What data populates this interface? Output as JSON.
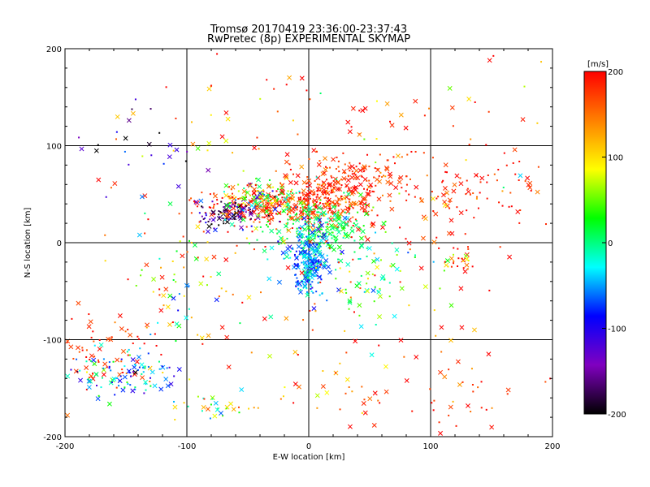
{
  "chart_data": {
    "type": "scatter",
    "title": "Tromsø 20170419 23:36:00-23:37:43",
    "subtitle": "RwPretec (8p) EXPERIMENTAL SKYMAP",
    "xlabel": "E-W location [km]",
    "ylabel": "N-S location [km]",
    "xlim": [
      -200,
      200
    ],
    "ylim": [
      -200,
      200
    ],
    "xticks": [
      "-200",
      "-100",
      "0",
      "100",
      "200"
    ],
    "yticks": [
      "-200",
      "-100",
      "0",
      "100",
      "200"
    ],
    "grid": true,
    "grid_values": [
      -100,
      0,
      100
    ],
    "colorbar": {
      "label": "[m/s]",
      "range": [
        -200,
        200
      ],
      "ticks": [
        "-200",
        "-100",
        "0",
        "100",
        "200"
      ],
      "colormap": [
        "#000000",
        "#8000c0",
        "#0000ff",
        "#00ffff",
        "#00ff00",
        "#ffff00",
        "#ff8000",
        "#ff0000"
      ]
    },
    "marker_types": [
      "dot",
      "x"
    ],
    "clusters": [
      {
        "x": -30,
        "y": 38,
        "sx": 30,
        "sy": 9,
        "n": 260,
        "v": 185,
        "vs": 25
      },
      {
        "x": 15,
        "y": 45,
        "sx": 25,
        "sy": 15,
        "n": 200,
        "v": 175,
        "vs": 30
      },
      {
        "x": 40,
        "y": 65,
        "sx": 25,
        "sy": 12,
        "n": 110,
        "v": 185,
        "vs": 20
      },
      {
        "x": 10,
        "y": 15,
        "sx": 20,
        "sy": 15,
        "n": 200,
        "v": 10,
        "vs": 20
      },
      {
        "x": 0,
        "y": -20,
        "sx": 8,
        "sy": 18,
        "n": 240,
        "v": -60,
        "vs": 30
      },
      {
        "x": -65,
        "y": 30,
        "sx": 15,
        "sy": 10,
        "n": 90,
        "v": -150,
        "vs": 50
      },
      {
        "x": -40,
        "y": 45,
        "sx": 18,
        "sy": 8,
        "n": 110,
        "v": 50,
        "vs": 70
      },
      {
        "x": 130,
        "y": 50,
        "sx": 40,
        "sy": 25,
        "n": 90,
        "v": 185,
        "vs": 20
      },
      {
        "x": -170,
        "y": -110,
        "sx": 25,
        "sy": 20,
        "n": 70,
        "v": 185,
        "vs": 20
      },
      {
        "x": -150,
        "y": -135,
        "sx": 22,
        "sy": 14,
        "n": 110,
        "v": -40,
        "vs": 60
      },
      {
        "x": -105,
        "y": -50,
        "sx": 18,
        "sy": 35,
        "n": 50,
        "v": 60,
        "vs": 80
      },
      {
        "x": -80,
        "y": -170,
        "sx": 20,
        "sy": 8,
        "n": 28,
        "v": 60,
        "vs": 70
      },
      {
        "x": 50,
        "y": -30,
        "sx": 25,
        "sy": 30,
        "n": 80,
        "v": 30,
        "vs": 60
      },
      {
        "x": 120,
        "y": -15,
        "sx": 12,
        "sy": 10,
        "n": 30,
        "v": 150,
        "vs": 80
      },
      {
        "x": 130,
        "y": -150,
        "sx": 30,
        "sy": 25,
        "n": 35,
        "v": 185,
        "vs": 30
      },
      {
        "x": 40,
        "y": -155,
        "sx": 25,
        "sy": 20,
        "n": 30,
        "v": 170,
        "vs": 50
      },
      {
        "x": 0,
        "y": 20,
        "sx": 100,
        "sy": 100,
        "n": 260,
        "v": 150,
        "vs": 80
      },
      {
        "x": -140,
        "y": 90,
        "sx": 40,
        "sy": 50,
        "n": 30,
        "v": -150,
        "vs": 60
      }
    ]
  }
}
